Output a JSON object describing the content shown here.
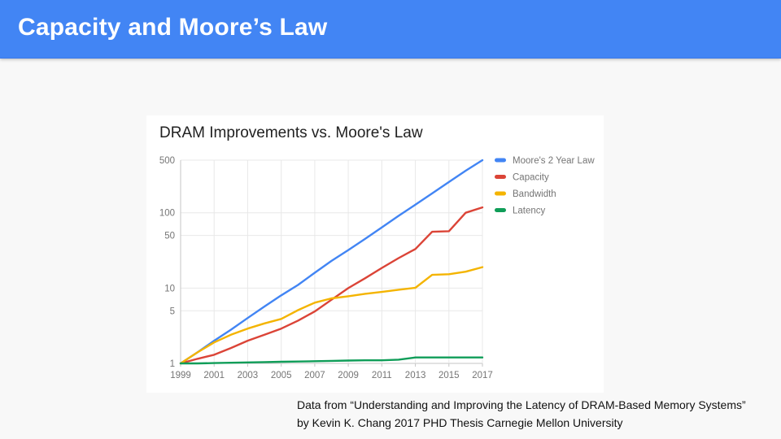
{
  "slide": {
    "title": "Capacity and Moore’s Law",
    "header_color": "#4285f4",
    "background_color": "#f8f8f8"
  },
  "caption": {
    "line1": "Data from “Understanding and Improving the Latency of DRAM-Based Memory Systems”",
    "line2": "by Kevin K. Chang 2017 PHD Thesis Carnegie Mellon University"
  },
  "chart_data": {
    "type": "line",
    "title": "DRAM Improvements vs. Moore's Law",
    "xlabel": "",
    "ylabel": "",
    "y_scale": "log",
    "ylim": [
      1,
      500
    ],
    "grid": true,
    "legend_position": "right",
    "x": [
      1999,
      2000,
      2001,
      2002,
      2003,
      2004,
      2005,
      2006,
      2007,
      2008,
      2009,
      2010,
      2011,
      2012,
      2013,
      2014,
      2015,
      2016,
      2017
    ],
    "x_ticks": [
      1999,
      2001,
      2003,
      2005,
      2007,
      2009,
      2011,
      2013,
      2015,
      2017
    ],
    "y_ticks": [
      1,
      5,
      10,
      50,
      100,
      500
    ],
    "series": [
      {
        "name": "Moore's 2 Year Law",
        "color": "#4285f4",
        "values": [
          1,
          1.4,
          2,
          2.8,
          4,
          5.7,
          8,
          11,
          16,
          23,
          32,
          45,
          64,
          91,
          128,
          181,
          256,
          362,
          500
        ]
      },
      {
        "name": "Capacity",
        "color": "#db4437",
        "values": [
          1,
          1.15,
          1.3,
          1.6,
          2,
          2.4,
          2.9,
          3.7,
          4.9,
          7,
          10,
          13.5,
          18.5,
          25,
          33,
          56,
          57,
          100,
          118
        ]
      },
      {
        "name": "Bandwidth",
        "color": "#f4b400",
        "values": [
          1,
          1.4,
          1.9,
          2.4,
          2.9,
          3.4,
          3.9,
          5.1,
          6.4,
          7.3,
          7.8,
          8.4,
          8.9,
          9.5,
          10.1,
          15,
          15.3,
          16.5,
          19
        ]
      },
      {
        "name": "Latency",
        "color": "#0f9d58",
        "values": [
          1,
          1,
          1.01,
          1.02,
          1.03,
          1.04,
          1.05,
          1.06,
          1.07,
          1.08,
          1.09,
          1.1,
          1.1,
          1.12,
          1.2,
          1.2,
          1.2,
          1.2,
          1.2
        ]
      }
    ]
  }
}
